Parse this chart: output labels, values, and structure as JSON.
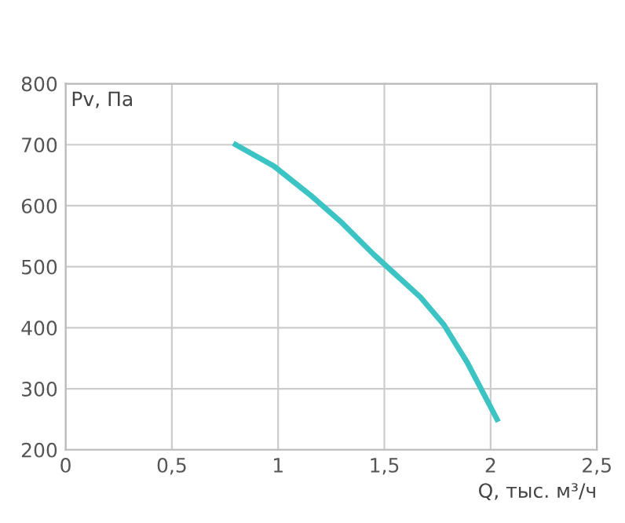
{
  "chart_data": {
    "type": "line",
    "xlabel": "Q, тыс. м³/ч",
    "ylabel": "Pv, Па",
    "series": [
      {
        "color": "#3cc3c3",
        "x": [
          0.8,
          0.98,
          1.16,
          1.3,
          1.45,
          1.56,
          1.67,
          1.78,
          1.89,
          1.97,
          2.03
        ],
        "values": [
          700,
          665,
          615,
          572,
          520,
          485,
          450,
          405,
          343,
          290,
          250
        ]
      }
    ],
    "xlim": [
      0,
      2.5
    ],
    "xticks": [
      0,
      {
        "value": 0.5,
        "label": "0,5"
      },
      1,
      {
        "value": 1.5,
        "label": "1,5"
      },
      2,
      {
        "value": 2.5,
        "label": "2,5"
      }
    ],
    "ylim": [
      200,
      800
    ],
    "yticks": [
      200,
      300,
      400,
      500,
      600,
      700,
      800
    ],
    "grid": true,
    "line_style": "solid",
    "marker": "none"
  }
}
